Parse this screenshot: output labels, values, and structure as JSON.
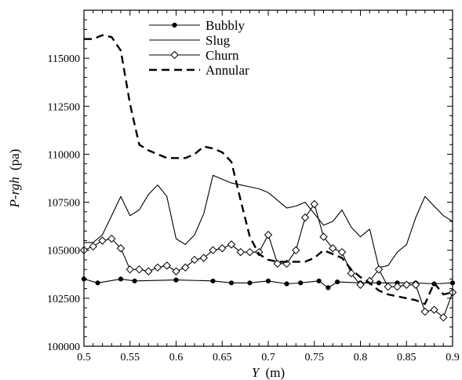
{
  "chart_data": {
    "type": "line",
    "xlabel_var": "Y",
    "xlabel_unit": "(m)",
    "ylabel_var": "P-rgh",
    "ylabel_unit": "(pa)",
    "xlim": [
      0.5,
      0.9
    ],
    "ylim": [
      100000,
      117500
    ],
    "xticks": [
      "0.5",
      "0.55",
      "0.6",
      "0.65",
      "0.7",
      "0.75",
      "0.8",
      "0.85",
      "0.9"
    ],
    "yticks": [
      "100000",
      "102500",
      "105000",
      "107500",
      "110000",
      "112500",
      "115000"
    ],
    "xtick_values": [
      0.5,
      0.55,
      0.6,
      0.65,
      0.7,
      0.75,
      0.8,
      0.85,
      0.9
    ],
    "ytick_values": [
      100000,
      102500,
      105000,
      107500,
      110000,
      112500,
      115000
    ],
    "legend_position": "top-center",
    "series": [
      {
        "name": "Bubbly",
        "style": "solid-circle",
        "x": [
          0.5,
          0.515,
          0.54,
          0.555,
          0.6,
          0.64,
          0.66,
          0.68,
          0.7,
          0.72,
          0.735,
          0.755,
          0.765,
          0.775,
          0.8,
          0.82,
          0.84,
          0.86,
          0.88,
          0.9
        ],
        "y": [
          103500,
          103300,
          103500,
          103400,
          103450,
          103400,
          103300,
          103300,
          103400,
          103250,
          103300,
          103400,
          103050,
          103350,
          103300,
          103300,
          103300,
          103300,
          103250,
          103300
        ]
      },
      {
        "name": "Slug",
        "style": "solid",
        "x": [
          0.5,
          0.51,
          0.52,
          0.53,
          0.54,
          0.55,
          0.56,
          0.57,
          0.58,
          0.59,
          0.6,
          0.61,
          0.62,
          0.63,
          0.64,
          0.65,
          0.66,
          0.67,
          0.68,
          0.69,
          0.7,
          0.71,
          0.72,
          0.73,
          0.74,
          0.75,
          0.76,
          0.77,
          0.78,
          0.79,
          0.8,
          0.81,
          0.82,
          0.83,
          0.84,
          0.85,
          0.86,
          0.87,
          0.88,
          0.89,
          0.9
        ],
        "y": [
          105400,
          105400,
          105800,
          106800,
          107800,
          106800,
          107100,
          107900,
          108400,
          107800,
          105600,
          105300,
          105800,
          106900,
          108900,
          108700,
          108500,
          108400,
          108300,
          108200,
          108000,
          107600,
          107200,
          107300,
          107500,
          106900,
          106300,
          106500,
          107100,
          106200,
          105700,
          106100,
          104100,
          104200,
          104900,
          105300,
          106700,
          107800,
          107300,
          106800,
          106500
        ]
      },
      {
        "name": "Churn",
        "style": "solid-diamond",
        "x": [
          0.5,
          0.51,
          0.52,
          0.53,
          0.54,
          0.55,
          0.56,
          0.57,
          0.58,
          0.59,
          0.6,
          0.61,
          0.62,
          0.63,
          0.64,
          0.65,
          0.66,
          0.67,
          0.68,
          0.69,
          0.7,
          0.71,
          0.72,
          0.73,
          0.74,
          0.75,
          0.76,
          0.77,
          0.78,
          0.79,
          0.8,
          0.81,
          0.82,
          0.83,
          0.84,
          0.85,
          0.86,
          0.87,
          0.88,
          0.89,
          0.9
        ],
        "y": [
          105000,
          105200,
          105500,
          105600,
          105100,
          104000,
          104000,
          103900,
          104100,
          104200,
          103900,
          104100,
          104500,
          104600,
          105000,
          105100,
          105300,
          104900,
          104900,
          104900,
          105800,
          104300,
          104300,
          105000,
          106700,
          107400,
          105700,
          105100,
          104900,
          103800,
          103200,
          103400,
          104000,
          103100,
          103100,
          103200,
          103200,
          101800,
          101900,
          101500,
          102800
        ]
      },
      {
        "name": "Annular",
        "style": "dashed",
        "x": [
          0.5,
          0.51,
          0.52,
          0.53,
          0.54,
          0.55,
          0.56,
          0.57,
          0.58,
          0.59,
          0.6,
          0.61,
          0.62,
          0.63,
          0.64,
          0.65,
          0.66,
          0.67,
          0.68,
          0.69,
          0.7,
          0.71,
          0.72,
          0.73,
          0.74,
          0.75,
          0.76,
          0.77,
          0.78,
          0.79,
          0.8,
          0.81,
          0.82,
          0.83,
          0.84,
          0.85,
          0.86,
          0.87,
          0.88,
          0.89,
          0.9
        ],
        "y": [
          116000,
          116000,
          116200,
          116100,
          115400,
          112600,
          110500,
          110200,
          110000,
          109800,
          109800,
          109800,
          110000,
          110400,
          110300,
          110100,
          109600,
          107600,
          105700,
          104800,
          104500,
          104400,
          104400,
          104400,
          104400,
          104600,
          105000,
          104800,
          104600,
          104000,
          103600,
          103300,
          102900,
          102700,
          102600,
          102500,
          102400,
          102200,
          103300,
          102700,
          102800
        ]
      }
    ]
  }
}
